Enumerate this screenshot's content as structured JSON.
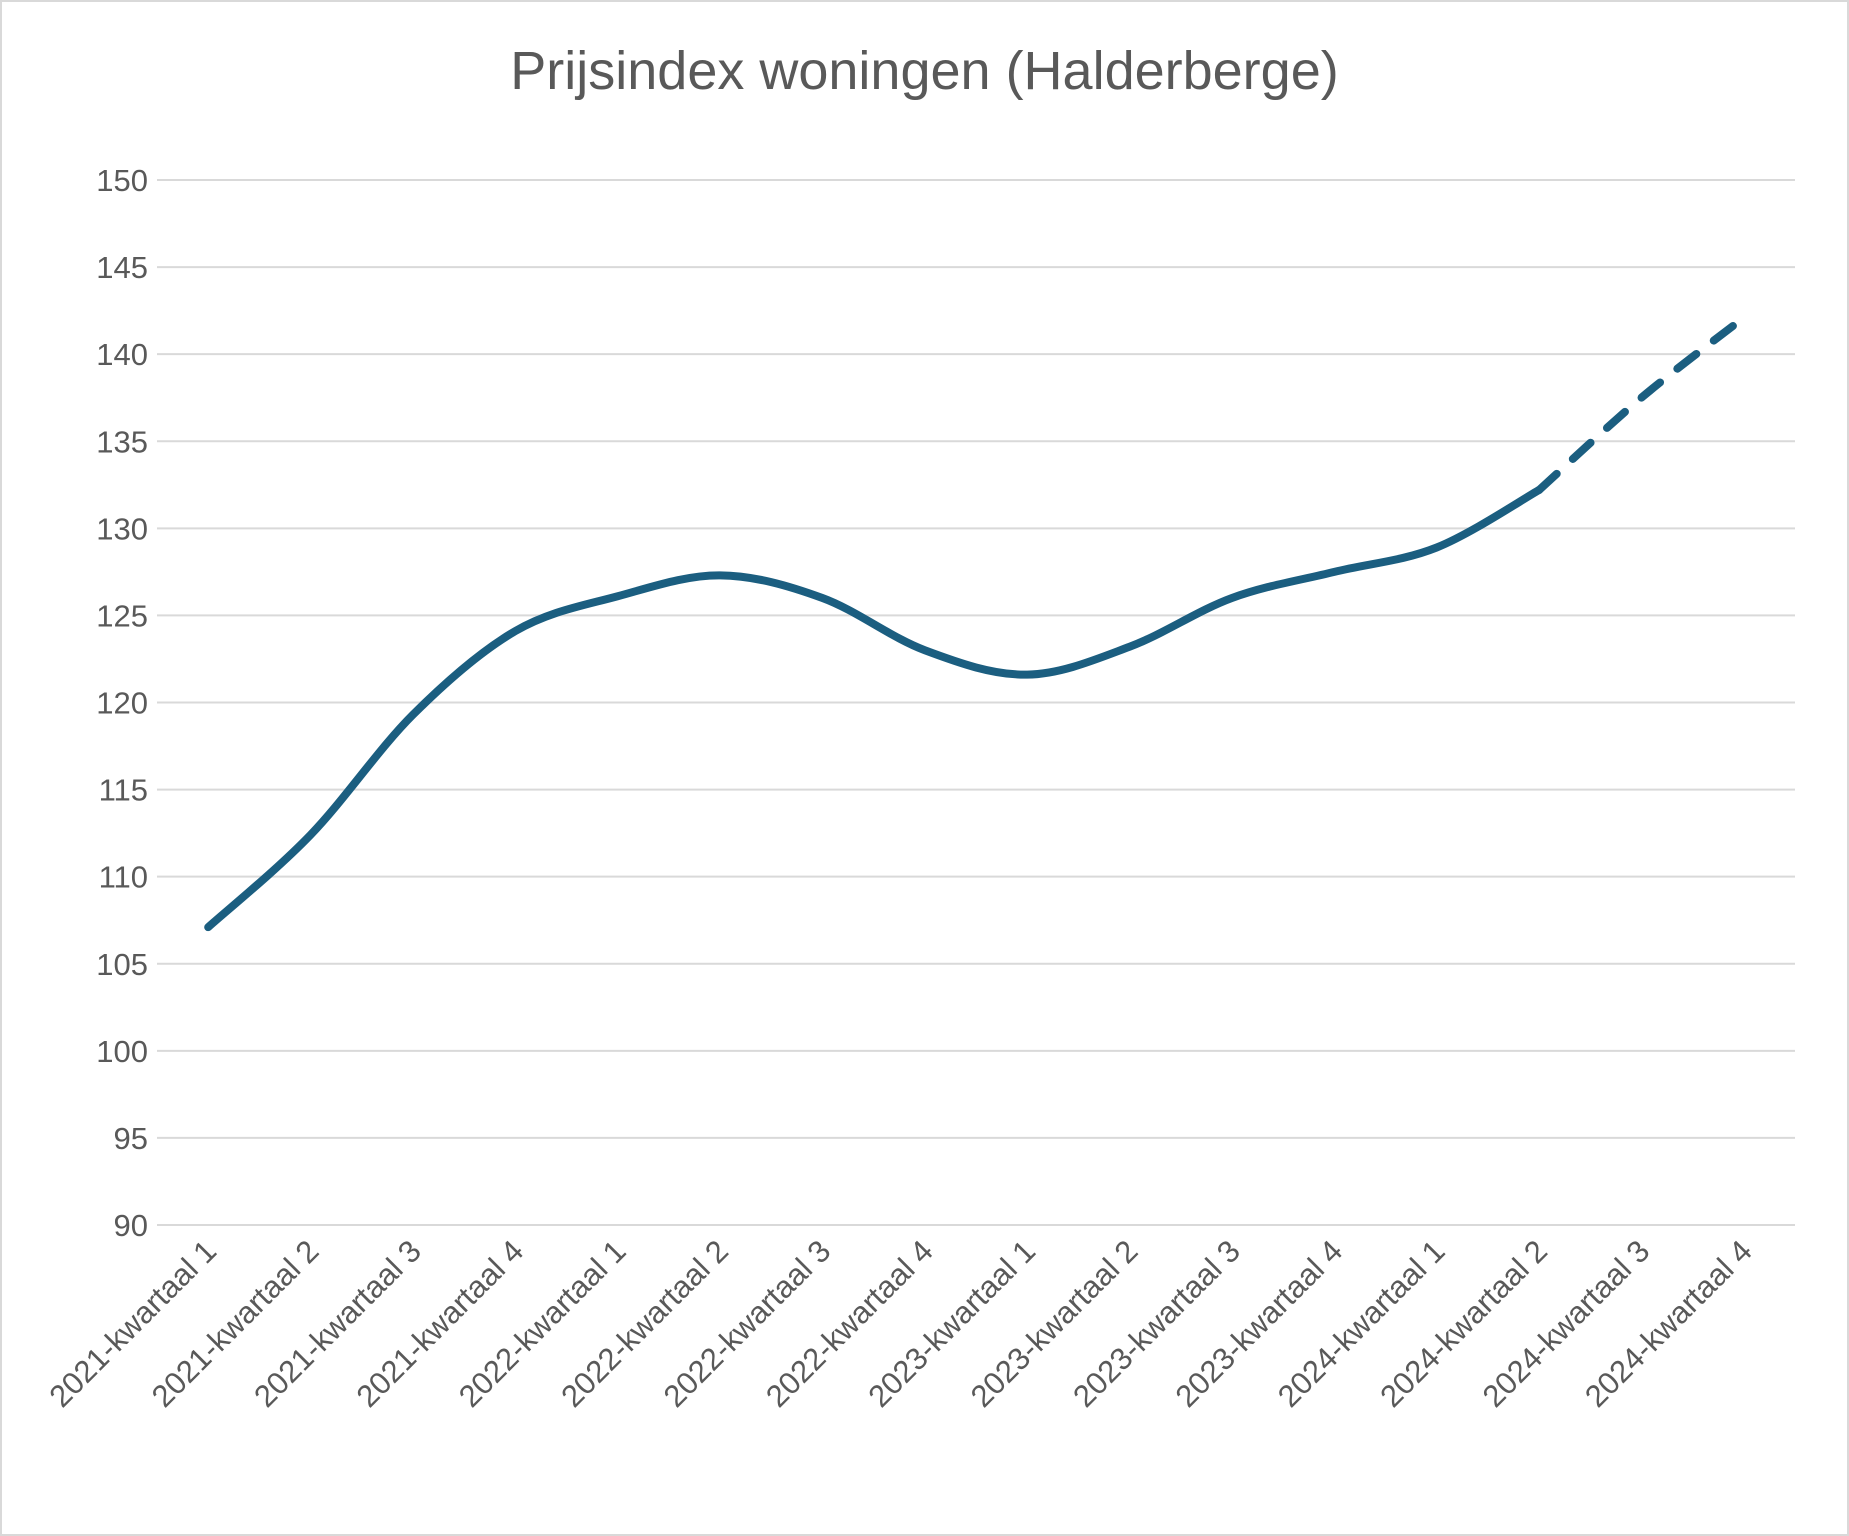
{
  "chart_data": {
    "type": "line",
    "title": "Prijsindex woningen (Halderberge)",
    "xlabel": "",
    "ylabel": "",
    "ylim": [
      90,
      150
    ],
    "ytick_step": 5,
    "grid": true,
    "legend": "none",
    "line_color": "#1b5e80",
    "grid_color": "#d9d9d9",
    "categories": [
      "2021-kwartaal 1",
      "2021-kwartaal 2",
      "2021-kwartaal 3",
      "2021-kwartaal 4",
      "2022-kwartaal 1",
      "2022-kwartaal 2",
      "2022-kwartaal 3",
      "2022-kwartaal 4",
      "2023-kwartaal 1",
      "2023-kwartaal 2",
      "2023-kwartaal 3",
      "2023-kwartaal 4",
      "2024-kwartaal 1",
      "2024-kwartaal 2",
      "2024-kwartaal 3",
      "2024-kwartaal 4"
    ],
    "series": [
      {
        "values": [
          107.1,
          112.4,
          119.3,
          124.1,
          126.1,
          127.3,
          126.0,
          123.0,
          121.6,
          123.2,
          126.0,
          127.5,
          128.9,
          132.2,
          137.5,
          142.1
        ],
        "solid_until_index": 13,
        "style_after": "dashed"
      }
    ]
  }
}
